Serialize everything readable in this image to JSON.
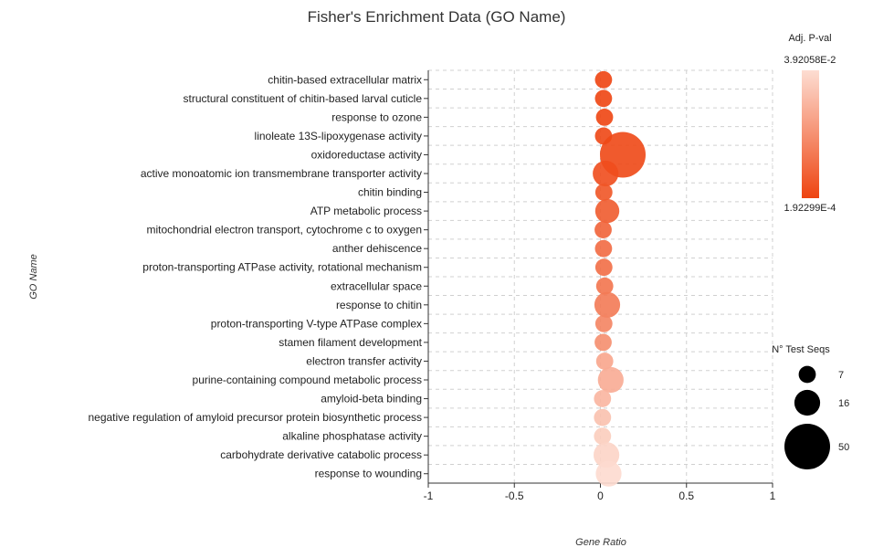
{
  "chart_data": {
    "type": "scatter",
    "title": "Fisher's Enrichment Data (GO Name)",
    "xlabel": "Gene Ratio",
    "ylabel": "GO Name",
    "xlim": [
      -1,
      1
    ],
    "xticks": [
      -1,
      -0.5,
      0,
      0.5,
      1
    ],
    "xtick_labels": [
      "-1",
      "-0.5",
      "0",
      "0.5",
      "1"
    ],
    "grid": true,
    "categories": [
      "chitin-based extracellular matrix",
      "structural constituent of chitin-based larval cuticle",
      "response to ozone",
      "linoleate 13S-lipoxygenase activity",
      "oxidoreductase activity",
      "active monoatomic ion transmembrane transporter activity",
      "chitin binding",
      "ATP metabolic process",
      "mitochondrial electron transport, cytochrome c to oxygen",
      "anther dehiscence",
      "proton-transporting ATPase activity, rotational mechanism",
      "extracellular space",
      "response to chitin",
      "proton-transporting V-type ATPase complex",
      "stamen filament development",
      "electron transfer activity",
      "purine-containing compound metabolic process",
      "amyloid-beta binding",
      "negative regulation of amyloid precursor protein biosynthetic process",
      "alkaline phosphatase activity",
      "carbohydrate derivative catabolic process",
      "response to wounding"
    ],
    "gene_ratio": [
      0.018,
      0.018,
      0.024,
      0.018,
      0.13,
      0.03,
      0.02,
      0.04,
      0.016,
      0.018,
      0.02,
      0.025,
      0.04,
      0.02,
      0.016,
      0.025,
      0.06,
      0.012,
      0.012,
      0.012,
      0.035,
      0.048
    ],
    "test_seqs": [
      7,
      7,
      7,
      7,
      50,
      16,
      7,
      14,
      7,
      7,
      7,
      7,
      16,
      7,
      7,
      7,
      16,
      7,
      7,
      7,
      16,
      16
    ],
    "adj_pval": [
      0.0002,
      0.0004,
      0.0004,
      0.0009,
      0.0013,
      0.0026,
      0.0045,
      0.006,
      0.008,
      0.01,
      0.011,
      0.0125,
      0.014,
      0.0165,
      0.019,
      0.025,
      0.0265,
      0.029,
      0.032,
      0.035,
      0.037,
      0.0385
    ],
    "color_legend": {
      "title": "Adj. P-val",
      "max_label": "3.92058E-2",
      "min_label": "1.92299E-4",
      "max_value": 0.0392058,
      "min_value": 0.000192299,
      "color_low": "#ee4411",
      "color_high": "#fdddd2"
    },
    "size_legend": {
      "title": "N° Test Seqs",
      "entries": [
        {
          "label": "7",
          "value": 7
        },
        {
          "label": "16",
          "value": 16
        },
        {
          "label": "50",
          "value": 50
        }
      ]
    }
  }
}
